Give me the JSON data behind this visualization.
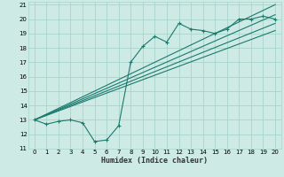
{
  "title": "",
  "xlabel": "Humidex (Indice chaleur)",
  "ylabel": "",
  "bg_color": "#ceeae4",
  "grid_color": "#a8d4cc",
  "line_color": "#1a7a6e",
  "xlim": [
    -0.5,
    20.5
  ],
  "ylim": [
    11,
    21.2
  ],
  "xticks": [
    0,
    1,
    2,
    3,
    4,
    5,
    6,
    7,
    8,
    9,
    10,
    11,
    12,
    13,
    14,
    15,
    16,
    17,
    18,
    19,
    20
  ],
  "yticks": [
    11,
    12,
    13,
    14,
    15,
    16,
    17,
    18,
    19,
    20,
    21
  ],
  "data_line": {
    "x": [
      0,
      1,
      2,
      3,
      4,
      5,
      6,
      7,
      8,
      9,
      10,
      11,
      12,
      13,
      14,
      15,
      16,
      17,
      18,
      19,
      20
    ],
    "y": [
      13.0,
      12.7,
      12.9,
      13.0,
      12.8,
      11.5,
      11.6,
      12.6,
      17.0,
      18.1,
      18.8,
      18.4,
      19.7,
      19.3,
      19.2,
      19.0,
      19.3,
      20.0,
      20.0,
      20.2,
      20.0
    ]
  },
  "trend_line1": {
    "x": [
      0,
      20
    ],
    "y": [
      13.0,
      21.0
    ]
  },
  "trend_line2": {
    "x": [
      0,
      20
    ],
    "y": [
      13.0,
      20.3
    ]
  },
  "trend_line3": {
    "x": [
      0,
      20
    ],
    "y": [
      13.0,
      19.7
    ]
  },
  "trend_line4": {
    "x": [
      0,
      20
    ],
    "y": [
      13.0,
      19.2
    ]
  }
}
